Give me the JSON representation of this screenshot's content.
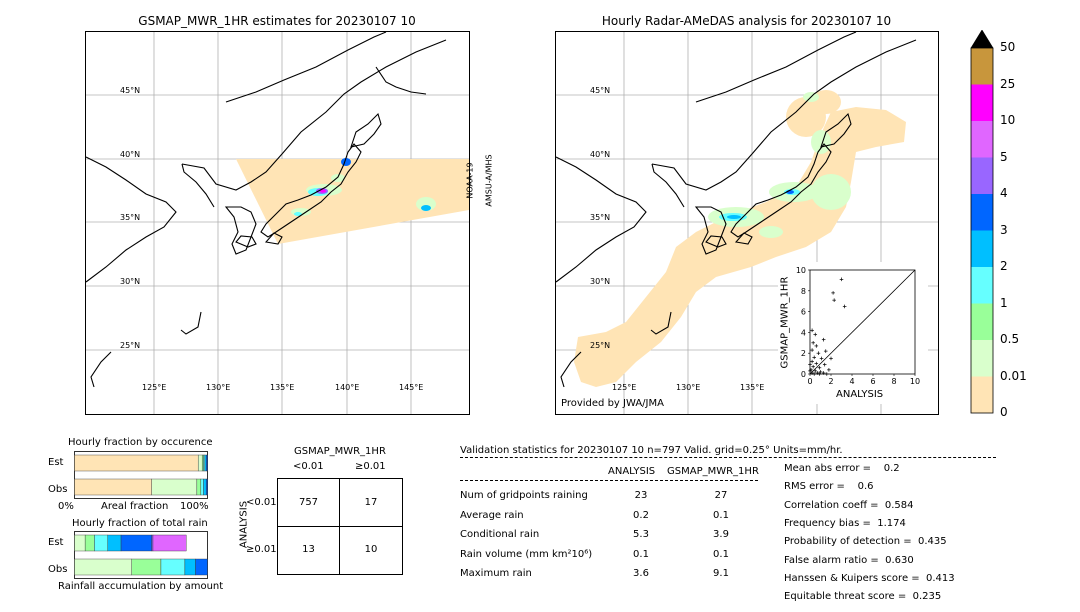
{
  "left_map": {
    "title": "GSMAP_MWR_1HR estimates for 20230107 10",
    "lat_labels": [
      "45°N",
      "40°N",
      "35°N",
      "30°N",
      "25°N"
    ],
    "lon_labels": [
      "125°E",
      "130°E",
      "135°E",
      "140°E",
      "145°E"
    ],
    "satellite_label_1": "NOAA-19",
    "satellite_label_2": "AMSU-A/MHS"
  },
  "right_map": {
    "title": "Hourly Radar-AMeDAS analysis for 20230107 10",
    "lat_labels": [
      "45°N",
      "40°N",
      "35°N",
      "30°N",
      "25°N"
    ],
    "lon_labels": [
      "125°E",
      "130°E",
      "135°E"
    ],
    "credit": "Provided by JWA/JMA"
  },
  "colorbar": {
    "labels": [
      "50",
      "25",
      "10",
      "5",
      "4",
      "3",
      "2",
      "1",
      "0.5",
      "0.01",
      "0"
    ],
    "colors": [
      "#c8963c",
      "#ff00ff",
      "#e066ff",
      "#9966ff",
      "#0066ff",
      "#00bfff",
      "#66ffff",
      "#99ff99",
      "#d9ffcc",
      "#ffe4b5"
    ],
    "over_color": "#000000"
  },
  "chart_data": [
    {
      "type": "scatter",
      "xlabel": "ANALYSIS",
      "ylabel": "GSMAP_MWR_1HR",
      "xlim": [
        0,
        10
      ],
      "ylim": [
        0,
        10
      ],
      "x_ticks": [
        "0",
        "2",
        "4",
        "6",
        "8",
        "10"
      ],
      "y_ticks": [
        "0",
        "2",
        "4",
        "6",
        "8",
        "10"
      ],
      "points": [
        {
          "x": 3.0,
          "y": 9.1
        },
        {
          "x": 2.2,
          "y": 7.8
        },
        {
          "x": 2.3,
          "y": 7.1
        },
        {
          "x": 3.3,
          "y": 6.5
        },
        {
          "x": 0.2,
          "y": 4.2
        },
        {
          "x": 0.5,
          "y": 3.8
        },
        {
          "x": 1.3,
          "y": 3.3
        },
        {
          "x": 0.3,
          "y": 3.0
        },
        {
          "x": 0.6,
          "y": 2.7
        },
        {
          "x": 0.2,
          "y": 2.3
        },
        {
          "x": 1.5,
          "y": 2.2
        },
        {
          "x": 0.8,
          "y": 2.0
        },
        {
          "x": 0.4,
          "y": 1.6
        },
        {
          "x": 1.1,
          "y": 1.5
        },
        {
          "x": 2.0,
          "y": 1.5
        },
        {
          "x": 0.2,
          "y": 1.2
        },
        {
          "x": 0.6,
          "y": 1.0
        },
        {
          "x": 1.4,
          "y": 0.9
        },
        {
          "x": 0.3,
          "y": 0.7
        },
        {
          "x": 0.9,
          "y": 0.6
        },
        {
          "x": 1.8,
          "y": 0.4
        },
        {
          "x": 0.1,
          "y": 0.4
        },
        {
          "x": 0.5,
          "y": 0.3
        },
        {
          "x": 1.0,
          "y": 0.2
        },
        {
          "x": 0.2,
          "y": 0.1
        },
        {
          "x": 0.7,
          "y": 0.1
        },
        {
          "x": 1.3,
          "y": 0.1
        },
        {
          "x": 0.0,
          "y": 0.9
        },
        {
          "x": 0.0,
          "y": 0.3
        },
        {
          "x": 0.4,
          "y": 0.0
        },
        {
          "x": 0.9,
          "y": 0.0
        },
        {
          "x": 1.6,
          "y": 0.0
        }
      ]
    },
    {
      "type": "bar",
      "title": "Hourly fraction by occurence",
      "xlabel": "Areal fraction",
      "x_ticks": [
        "0%",
        "100%"
      ],
      "categories": [
        "Est",
        "Obs"
      ],
      "series": [
        {
          "color": "#ffe4b5",
          "values": [
            0.93,
            0.58
          ]
        },
        {
          "color": "#d9ffcc",
          "values": [
            0.03,
            0.34
          ]
        },
        {
          "color": "#99ff99",
          "values": [
            0.01,
            0.03
          ]
        },
        {
          "color": "#66ffff",
          "values": [
            0.01,
            0.02
          ]
        },
        {
          "color": "#00bfff",
          "values": [
            0.01,
            0.02
          ]
        },
        {
          "color": "#0066ff",
          "values": [
            0.01,
            0.01
          ]
        }
      ]
    },
    {
      "type": "bar",
      "title": "Hourly fraction of total rain",
      "xlabel": "Rainfall accumulation by amount",
      "categories": [
        "Est",
        "Obs"
      ],
      "series": [
        {
          "color": "#d9ffcc",
          "values": [
            0.08,
            0.43
          ]
        },
        {
          "color": "#99ff99",
          "values": [
            0.07,
            0.22
          ]
        },
        {
          "color": "#66ffff",
          "values": [
            0.1,
            0.18
          ]
        },
        {
          "color": "#00bfff",
          "values": [
            0.1,
            0.08
          ]
        },
        {
          "color": "#0066ff",
          "values": [
            0.23,
            0.09
          ]
        },
        {
          "color": "#9966ff",
          "values": [
            0.01,
            0.0
          ]
        },
        {
          "color": "#e066ff",
          "values": [
            0.25,
            0.0
          ]
        }
      ]
    }
  ],
  "contingency": {
    "title": "GSMAP_MWR_1HR",
    "col_lt": "<0.01",
    "col_ge": "≥0.01",
    "row_axis": "ANALYSIS",
    "row_lt": "<0.01",
    "row_ge": "≥0.01",
    "a": "757",
    "b": "17",
    "c": "13",
    "d": "10"
  },
  "validation": {
    "header": "Validation statistics for 20230107 10  n=797 Valid. grid=0.25° Units=mm/hr.",
    "col_analysis": "ANALYSIS",
    "col_gsmap": "GSMAP_MWR_1HR",
    "rows": [
      {
        "label": "Num of gridpoints raining",
        "analysis": "23",
        "gsmap": "27"
      },
      {
        "label": "Average rain",
        "analysis": "0.2",
        "gsmap": "0.1"
      },
      {
        "label": "Conditional rain",
        "analysis": "5.3",
        "gsmap": "3.9"
      },
      {
        "label": "Rain volume (mm km²10⁶)",
        "analysis": "0.1",
        "gsmap": "0.1"
      },
      {
        "label": "Maximum rain",
        "analysis": "3.6",
        "gsmap": "9.1"
      }
    ],
    "scores": [
      "Mean abs error =    0.2",
      "RMS error =    0.6",
      "Correlation coeff =  0.584",
      "Frequency bias =  1.174",
      "Probability of detection =  0.435",
      "False alarm ratio =  0.630",
      "Hanssen & Kuipers score =  0.413",
      "Equitable threat score =  0.235"
    ]
  }
}
